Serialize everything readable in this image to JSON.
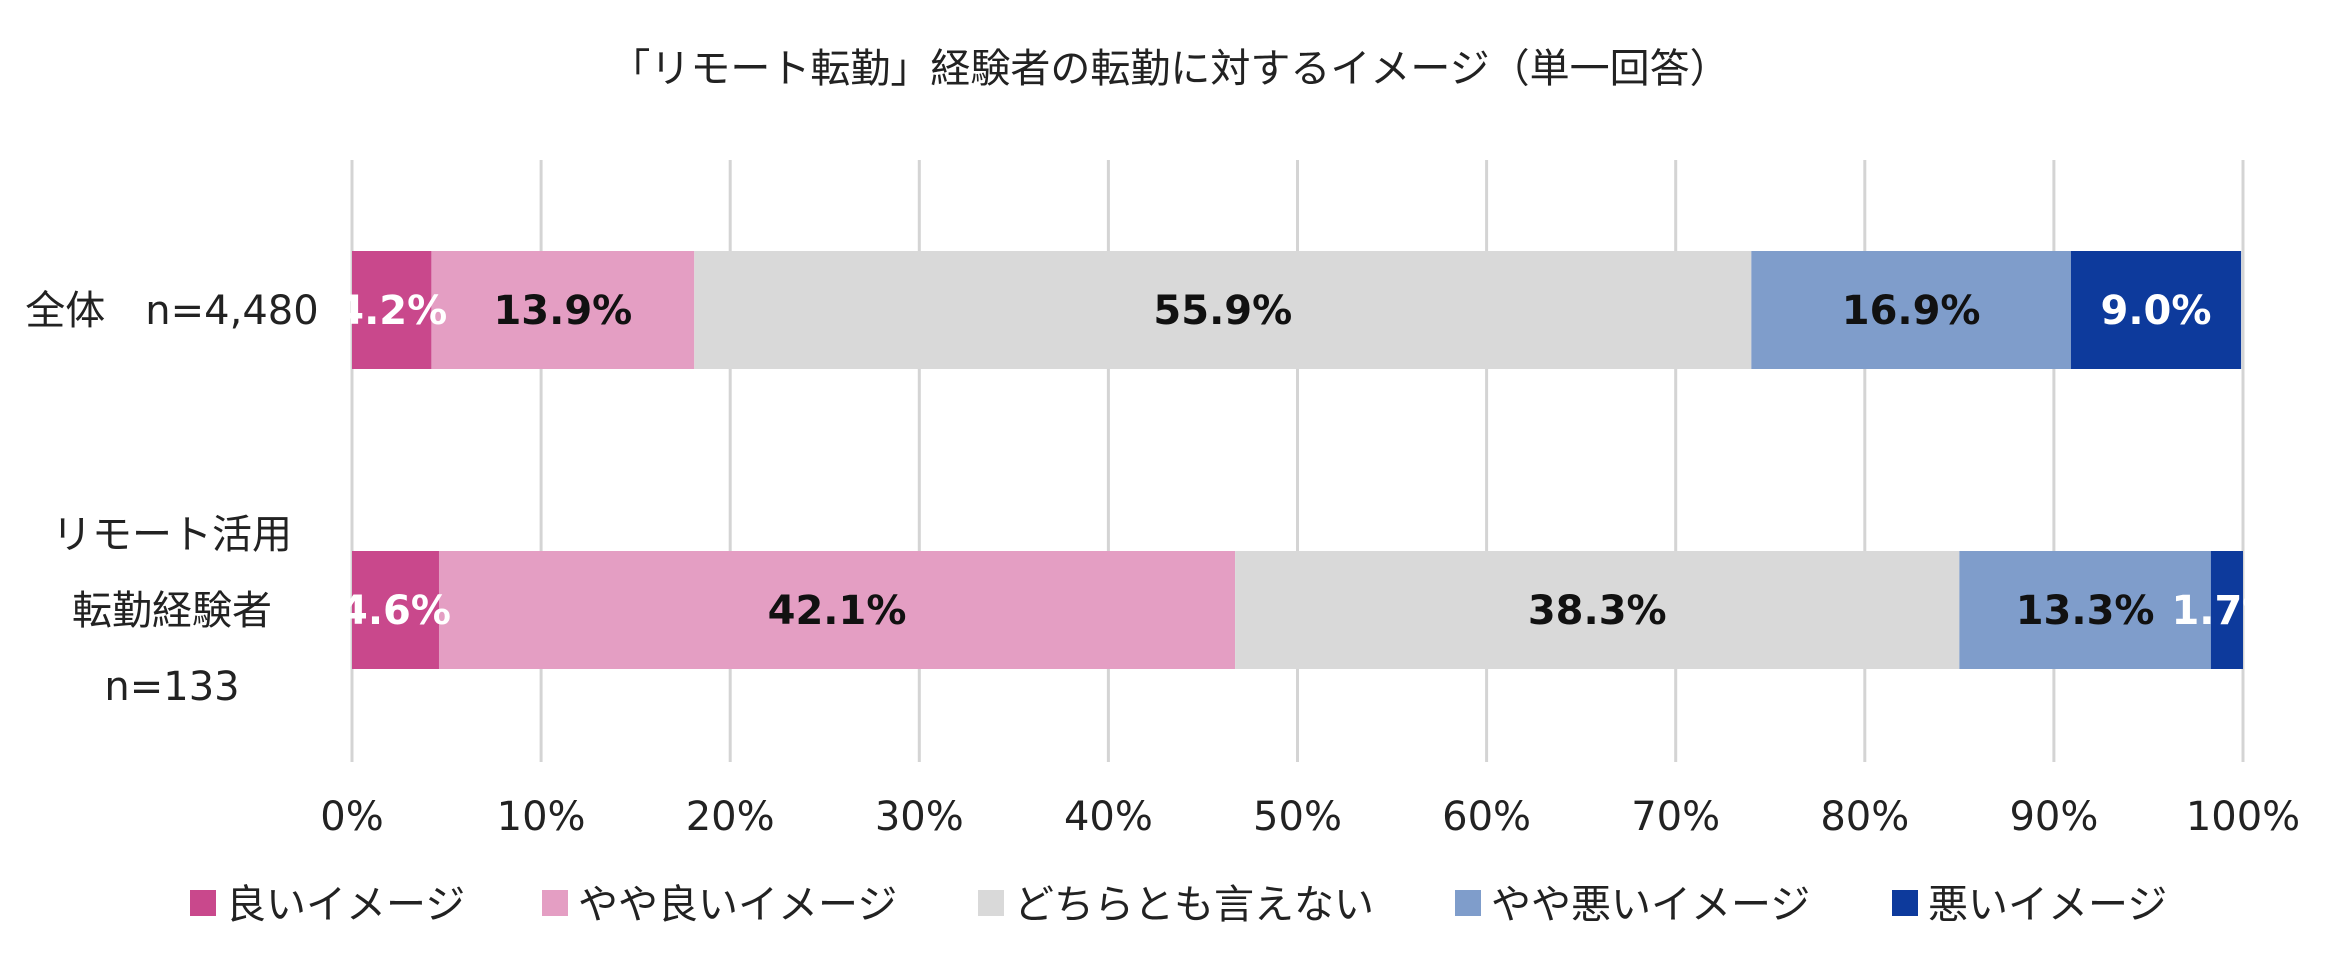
{
  "chart_data": {
    "type": "bar",
    "orientation": "horizontal",
    "stacked": true,
    "title": "「リモート転勤」経験者の転勤に対するイメージ（単一回答）",
    "categories": [
      {
        "lines": [
          "全体　n=4,480"
        ]
      },
      {
        "lines": [
          "リモート活用",
          "転勤経験者",
          "n=133"
        ]
      }
    ],
    "series": [
      {
        "name": "良いイメージ",
        "color": "#c9488c",
        "label_color": "#ffffff",
        "values": [
          4.2,
          4.6
        ]
      },
      {
        "name": "やや良いイメージ",
        "color": "#e49ec3",
        "label_color": "#111111",
        "values": [
          13.9,
          42.1
        ]
      },
      {
        "name": "どちらとも言えない",
        "color": "#d9d9d9",
        "label_color": "#111111",
        "values": [
          55.9,
          38.3
        ]
      },
      {
        "name": "やや悪いイメージ",
        "color": "#7f9dcb",
        "label_color": "#111111",
        "values": [
          16.9,
          13.3
        ]
      },
      {
        "name": "悪いイメージ",
        "color": "#0d3a9c",
        "label_color": "#ffffff",
        "values": [
          9.0,
          1.7
        ]
      }
    ],
    "x_ticks": [
      "0%",
      "10%",
      "20%",
      "30%",
      "40%",
      "50%",
      "60%",
      "70%",
      "80%",
      "90%",
      "100%"
    ],
    "xlim": [
      0,
      100
    ],
    "grid": true,
    "legend_position": "bottom"
  }
}
